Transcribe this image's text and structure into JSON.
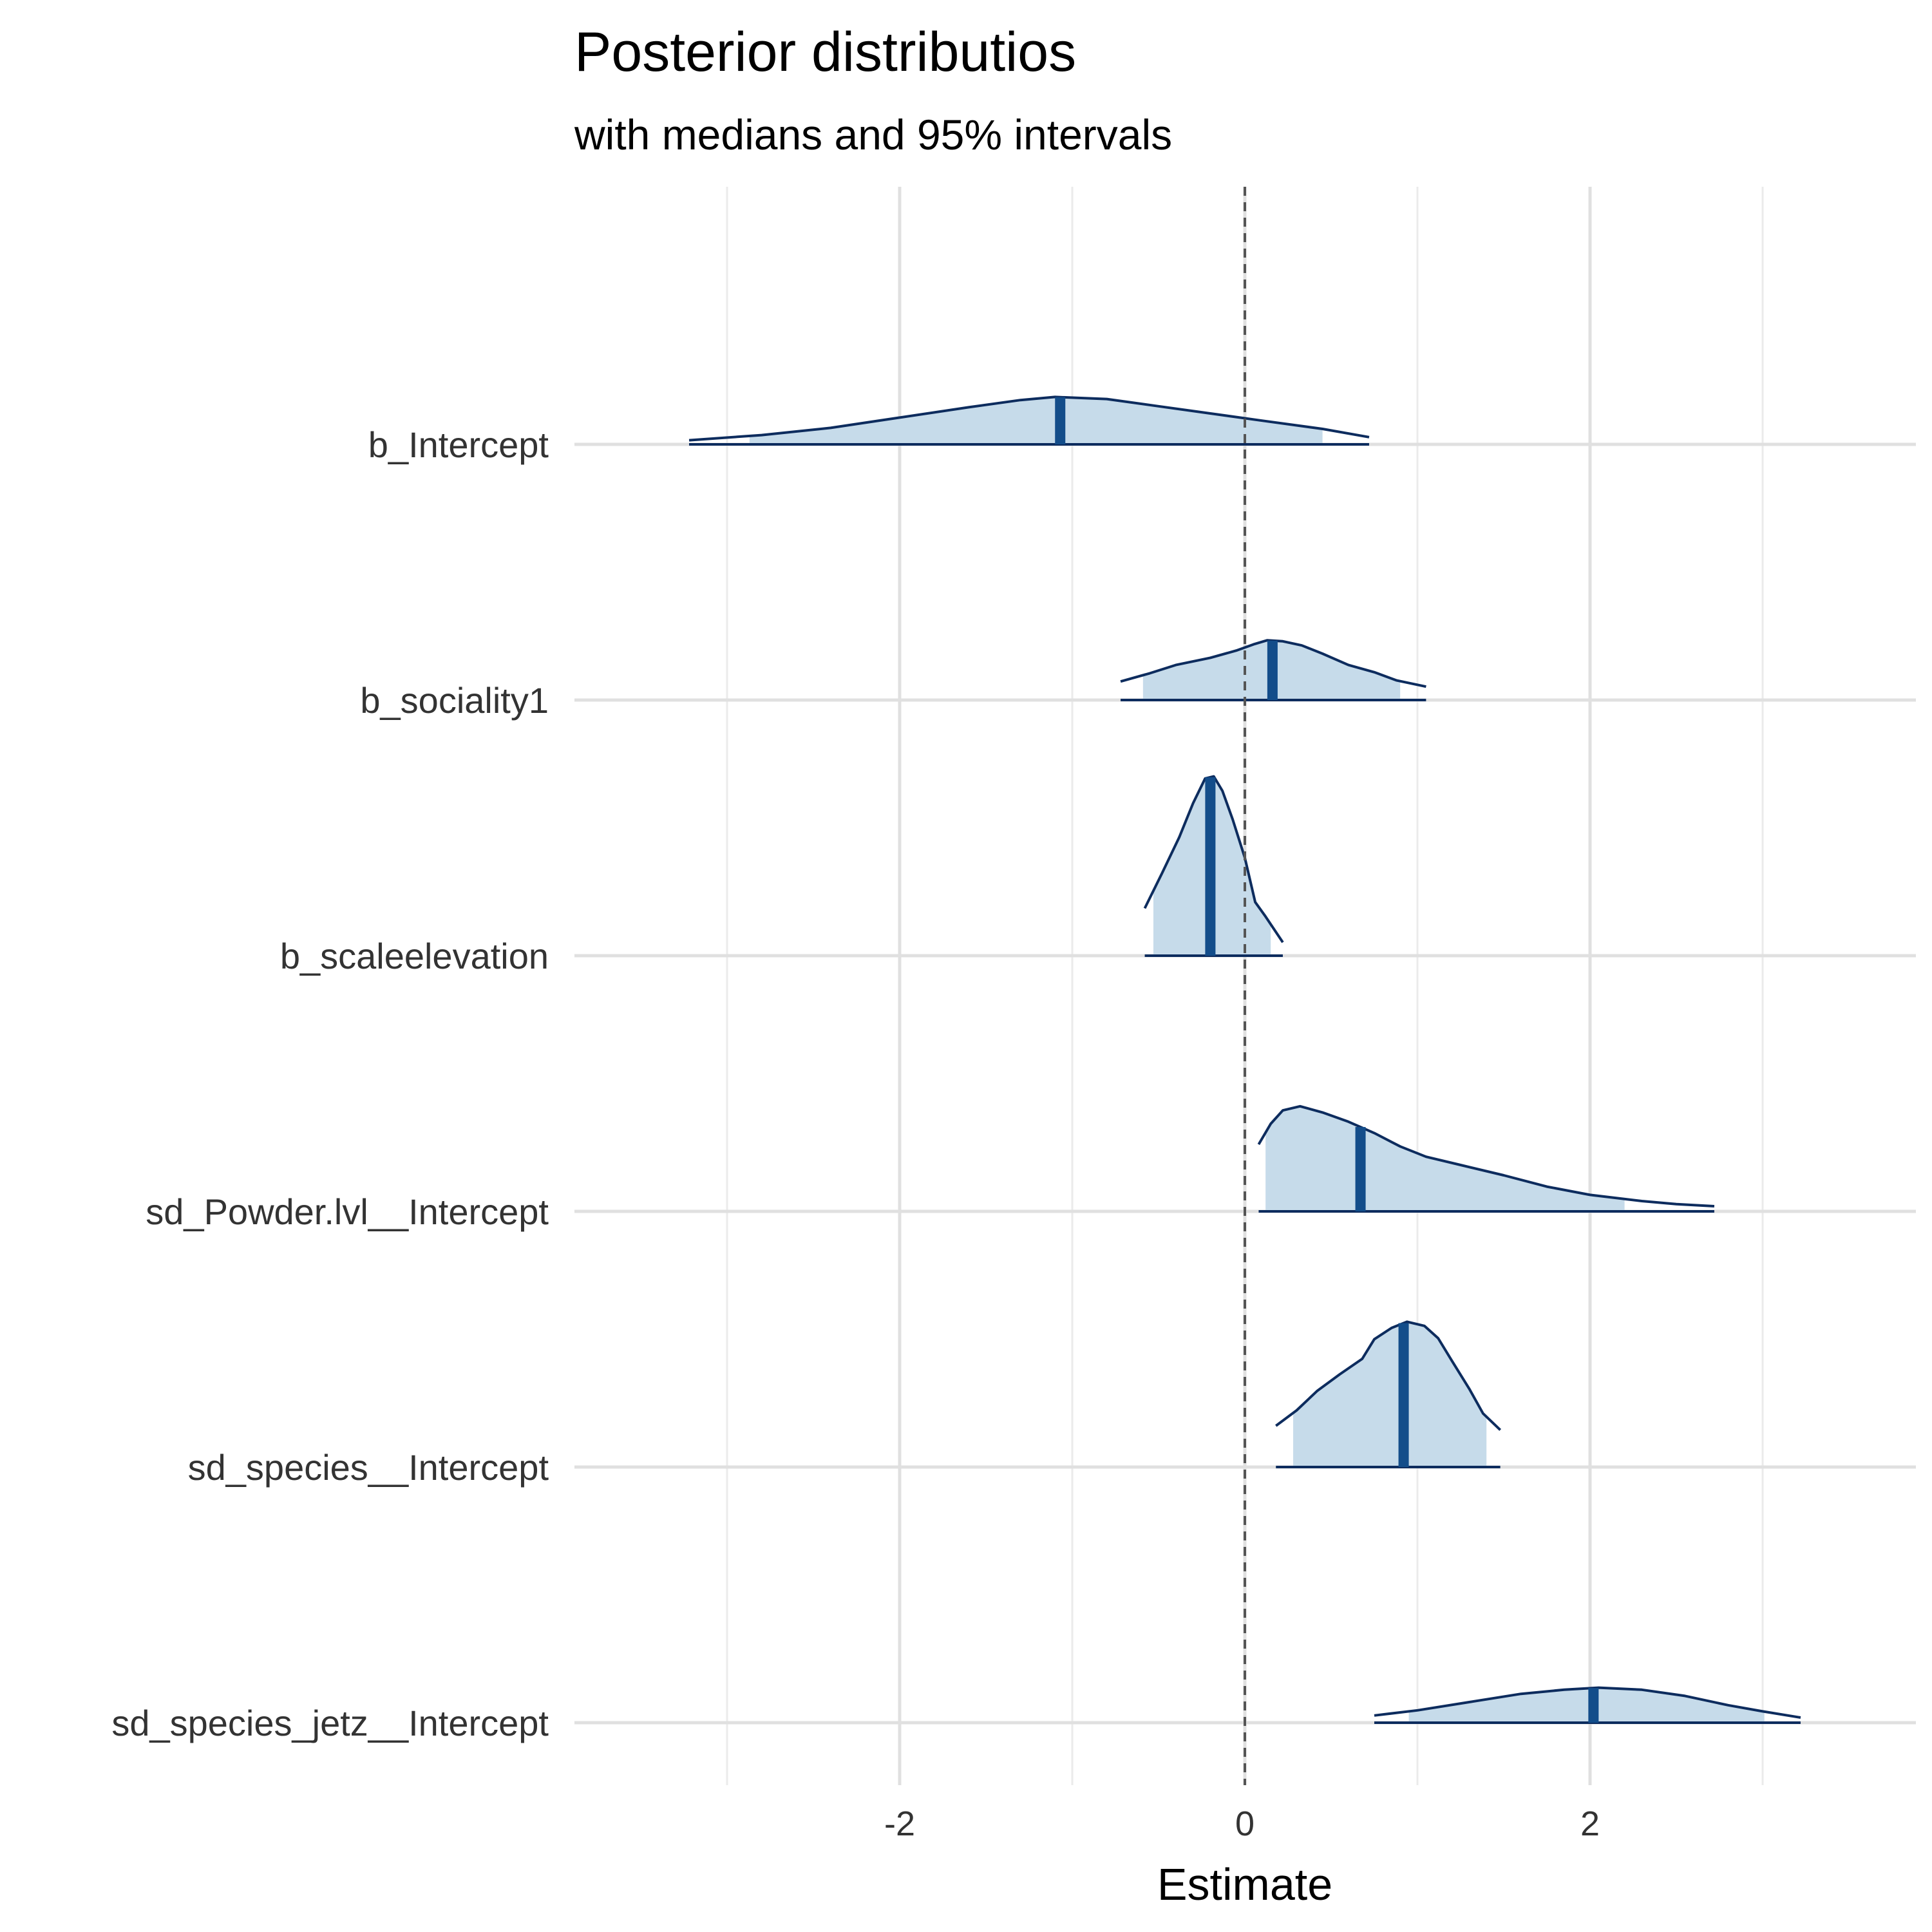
{
  "chart_data": {
    "type": "ridgeline",
    "title": "Posterior distributios",
    "subtitle": "with medians and 95% intervals",
    "xlabel": "Estimate",
    "ylabel": "",
    "xlim": [
      -3.9,
      3.9
    ],
    "x_ticks": [
      -2,
      0,
      2
    ],
    "x_tick_labels": [
      "-2",
      "0",
      "2"
    ],
    "x_minor_gridlines": [
      -3,
      -1,
      1,
      3
    ],
    "reference_line": 0,
    "colors": {
      "fill": "#c6dbea",
      "outline": "#0d2c5e",
      "median": "#134d8a",
      "grid": "#e0e0e0",
      "reference": "#555555"
    },
    "parameters": [
      {
        "label": "b_Intercept",
        "median": -1.07,
        "interval_95": [
          -2.87,
          0.45
        ],
        "density": [
          [
            -3.22,
            0.04
          ],
          [
            -2.8,
            0.09
          ],
          [
            -2.4,
            0.16
          ],
          [
            -2.0,
            0.26
          ],
          [
            -1.6,
            0.36
          ],
          [
            -1.3,
            0.43
          ],
          [
            -1.1,
            0.46
          ],
          [
            -0.8,
            0.44
          ],
          [
            -0.5,
            0.37
          ],
          [
            -0.2,
            0.3
          ],
          [
            0.1,
            0.23
          ],
          [
            0.45,
            0.15
          ],
          [
            0.72,
            0.07
          ]
        ]
      },
      {
        "label": "b_sociality1",
        "median": 0.16,
        "interval_95": [
          -0.59,
          0.9
        ],
        "density": [
          [
            -0.72,
            0.18
          ],
          [
            -0.55,
            0.26
          ],
          [
            -0.4,
            0.34
          ],
          [
            -0.2,
            0.41
          ],
          [
            -0.05,
            0.48
          ],
          [
            0.05,
            0.54
          ],
          [
            0.13,
            0.58
          ],
          [
            0.22,
            0.57
          ],
          [
            0.33,
            0.53
          ],
          [
            0.45,
            0.45
          ],
          [
            0.6,
            0.34
          ],
          [
            0.75,
            0.27
          ],
          [
            0.88,
            0.19
          ],
          [
            1.05,
            0.13
          ]
        ]
      },
      {
        "label": "b_scaleelevation",
        "median": -0.2,
        "interval_95": [
          -0.53,
          0.15
        ],
        "density": [
          [
            -0.58,
            0.46
          ],
          [
            -0.48,
            0.8
          ],
          [
            -0.38,
            1.15
          ],
          [
            -0.3,
            1.48
          ],
          [
            -0.23,
            1.72
          ],
          [
            -0.18,
            1.74
          ],
          [
            -0.13,
            1.6
          ],
          [
            -0.07,
            1.32
          ],
          [
            0.0,
            0.95
          ],
          [
            0.06,
            0.52
          ],
          [
            0.12,
            0.38
          ],
          [
            0.22,
            0.13
          ]
        ]
      },
      {
        "label": "sd_Powder.lvl__Intercept",
        "median": 0.67,
        "interval_95": [
          0.12,
          2.2
        ],
        "density": [
          [
            0.08,
            0.65
          ],
          [
            0.15,
            0.85
          ],
          [
            0.22,
            0.98
          ],
          [
            0.32,
            1.02
          ],
          [
            0.45,
            0.96
          ],
          [
            0.6,
            0.87
          ],
          [
            0.75,
            0.76
          ],
          [
            0.9,
            0.63
          ],
          [
            1.05,
            0.53
          ],
          [
            1.25,
            0.45
          ],
          [
            1.5,
            0.35
          ],
          [
            1.75,
            0.24
          ],
          [
            2.0,
            0.16
          ],
          [
            2.3,
            0.1
          ],
          [
            2.5,
            0.07
          ],
          [
            2.72,
            0.05
          ]
        ]
      },
      {
        "label": "sd_species__Intercept",
        "median": 0.92,
        "interval_95": [
          0.28,
          1.4
        ],
        "density": [
          [
            0.18,
            0.4
          ],
          [
            0.3,
            0.55
          ],
          [
            0.42,
            0.74
          ],
          [
            0.55,
            0.9
          ],
          [
            0.68,
            1.05
          ],
          [
            0.75,
            1.24
          ],
          [
            0.85,
            1.35
          ],
          [
            0.94,
            1.41
          ],
          [
            1.04,
            1.37
          ],
          [
            1.12,
            1.25
          ],
          [
            1.2,
            1.03
          ],
          [
            1.3,
            0.76
          ],
          [
            1.38,
            0.52
          ],
          [
            1.48,
            0.36
          ]
        ]
      },
      {
        "label": "sd_species_jetz__Intercept",
        "median": 2.02,
        "interval_95": [
          0.95,
          3.01
        ],
        "density": [
          [
            0.75,
            0.07
          ],
          [
            1.0,
            0.12
          ],
          [
            1.3,
            0.2
          ],
          [
            1.6,
            0.28
          ],
          [
            1.85,
            0.32
          ],
          [
            2.05,
            0.34
          ],
          [
            2.3,
            0.32
          ],
          [
            2.55,
            0.26
          ],
          [
            2.8,
            0.17
          ],
          [
            3.0,
            0.11
          ],
          [
            3.22,
            0.05
          ]
        ]
      }
    ]
  }
}
